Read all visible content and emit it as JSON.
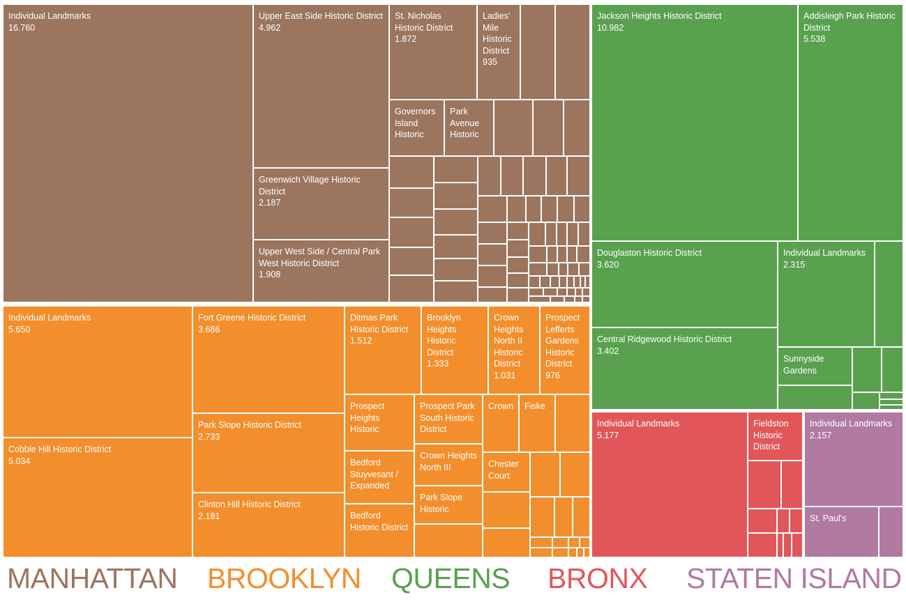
{
  "chart_data": {
    "type": "treemap",
    "groups": [
      {
        "name": "MANHATTAN",
        "color": "#9c755f",
        "items": [
          {
            "label": "Individual Landmarks",
            "value_label": "16.760",
            "value": 16760
          },
          {
            "label": "Upper East Side Historic District",
            "value_label": "4.962",
            "value": 4962
          },
          {
            "label": "Greenwich Village Historic District",
            "value_label": "2.187",
            "value": 2187
          },
          {
            "label": "Upper West Side / Central Park West Historic District",
            "value_label": "1.908",
            "value": 1908
          },
          {
            "label": "St. Nicholas Historic District",
            "value_label": "1.872",
            "value": 1872
          },
          {
            "label": "Ladies' Mile Historic District",
            "value_label": "935",
            "value": 935
          },
          {
            "label": "Governors Island Historic"
          },
          {
            "label": "Park Avenue Historic"
          }
        ]
      },
      {
        "name": "BROOKLYN",
        "color": "#f28e2b",
        "items": [
          {
            "label": "Individual Landmarks",
            "value_label": "5.650",
            "value": 5650
          },
          {
            "label": "Cobble Hill Historic District",
            "value_label": "5.034",
            "value": 5034
          },
          {
            "label": "Fort Greene Historic District",
            "value_label": "3.686",
            "value": 3686
          },
          {
            "label": "Park Slope Historic District",
            "value_label": "2.733",
            "value": 2733
          },
          {
            "label": "Clinton Hill Historic District",
            "value_label": "2.181",
            "value": 2181
          },
          {
            "label": "Ditmas Park Historic District",
            "value_label": "1.512",
            "value": 1512
          },
          {
            "label": "Brooklyn Heights Historic District",
            "value_label": "1.333",
            "value": 1333
          },
          {
            "label": "Crown Heights North II Historic District",
            "value_label": "1.031",
            "value": 1031
          },
          {
            "label": "Prospect Lefferts Gardens Historic District",
            "value_label": "976",
            "value": 976
          },
          {
            "label": "Prospect Heights Historic"
          },
          {
            "label": "Bedford Stuyvesant / Expanded"
          },
          {
            "label": "Bedford Historic District"
          },
          {
            "label": "Prospect Park South Historic District"
          },
          {
            "label": "Crown Heights North III"
          },
          {
            "label": "Park Slope Historic"
          },
          {
            "label": "Crown"
          },
          {
            "label": "Fiske"
          },
          {
            "label": "Chester Court"
          }
        ]
      },
      {
        "name": "QUEENS",
        "color": "#59a14f",
        "items": [
          {
            "label": "Jackson Heights Historic District",
            "value_label": "10.982",
            "value": 10982
          },
          {
            "label": "Addisleigh Park Historic District",
            "value_label": "5.538",
            "value": 5538
          },
          {
            "label": "Douglaston Historic District",
            "value_label": "3.620",
            "value": 3620
          },
          {
            "label": "Central Ridgewood Historic District",
            "value_label": "3.402",
            "value": 3402
          },
          {
            "label": "Individual Landmarks",
            "value_label": "2.315",
            "value": 2315
          },
          {
            "label": "Sunnyside Gardens"
          }
        ]
      },
      {
        "name": "BRONX",
        "color": "#e15759",
        "items": [
          {
            "label": "Individual Landmarks",
            "value_label": "5.177",
            "value": 5177
          },
          {
            "label": "Fieldston Historic District"
          }
        ]
      },
      {
        "name": "STATEN ISLAND",
        "color": "#b07aa1",
        "items": [
          {
            "label": "Individual Landmarks",
            "value_label": "2.157",
            "value": 2157
          },
          {
            "label": "St. Paul's"
          }
        ]
      }
    ]
  }
}
